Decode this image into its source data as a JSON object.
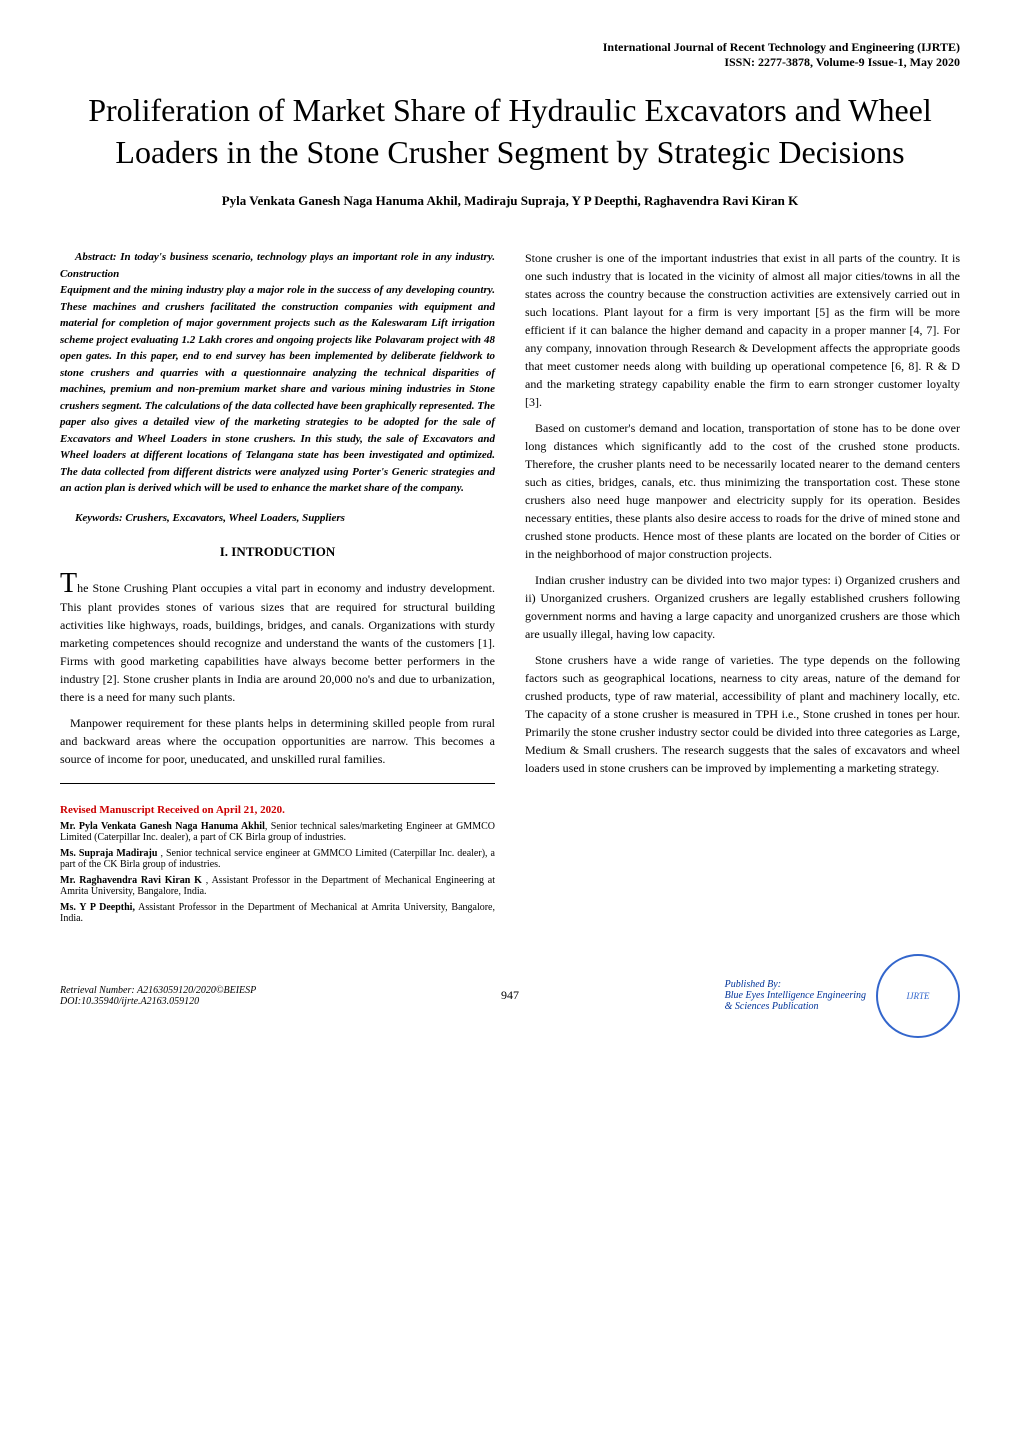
{
  "journal": {
    "name": "International Journal of Recent Technology and Engineering (IJRTE)",
    "issn": "ISSN: 2277-3878, Volume-9 Issue-1, May 2020"
  },
  "title": "Proliferation of Market Share of Hydraulic Excavators and Wheel Loaders in the Stone Crusher Segment by Strategic Decisions",
  "authors": "Pyla Venkata Ganesh Naga Hanuma Akhil, Madiraju Supraja, Y P Deepthi, Raghavendra Ravi Kiran K",
  "abstract": {
    "label": "Abstract: In today's business scenario, technology plays an important role in any industry. Construction",
    "body": "Equipment and the mining industry play a major role in the success of any developing country. These machines and crushers facilitated the construction companies with equipment and material for completion of major government projects such as the Kaleswaram Lift irrigation scheme project evaluating 1.2 Lakh crores and ongoing projects like Polavaram project with 48 open gates. In this paper, end to end survey has been implemented by deliberate fieldwork to stone crushers and quarries with a questionnaire analyzing the technical disparities of machines, premium and non-premium market share and various mining industries in Stone crushers segment. The calculations of the data collected have been graphically represented. The paper also gives a detailed view of the marketing strategies to be adopted for the sale of Excavators and Wheel Loaders in stone crushers. In this study, the sale of Excavators and Wheel loaders at different locations of Telangana state has been investigated and optimized. The data collected from different districts were analyzed using Porter's Generic strategies and an action plan is derived which will be used to enhance the market share of the company."
  },
  "keywords": "Keywords: Crushers, Excavators, Wheel Loaders, Suppliers",
  "section1": {
    "heading": "I.     INTRODUCTION",
    "dropcap": "T",
    "para1_start": "he Stone Crushing Plant occupies a vital part in economy and industry development. This plant provides stones of various sizes that are required for structural building activities like highways, roads, buildings, bridges, and canals. Organizations with sturdy marketing competences should recognize and understand the wants of the customers [1]. Firms with good marketing capabilities have always become better performers in the industry [2]. Stone crusher plants in India are around 20,000 no's and due to urbanization, there is a need for many such plants.",
    "para2": "Manpower requirement for these plants helps in determining skilled people from rural and backward areas where the occupation opportunities are narrow.  This becomes a source of income for poor, uneducated, and unskilled rural families."
  },
  "right_column": {
    "para1": "Stone crusher is one of the important industries that exist in all parts of the country. It is one such industry that is located in the vicinity of almost all major cities/towns in all the states across the country because the construction activities are extensively carried out in such locations. Plant layout for a firm is very important [5] as the firm will be more efficient if it can balance the higher demand and capacity in a proper manner [4, 7]. For any company, innovation through Research & Development affects the appropriate goods that meet customer needs along with building up operational competence [6, 8]. R & D and the marketing strategy capability enable the firm to earn stronger customer loyalty [3].",
    "para2": "Based on customer's demand and location, transportation of stone has to be done over long distances which significantly add to the cost of the crushed stone products. Therefore, the crusher plants need to be necessarily located nearer to the demand centers such as cities, bridges, canals, etc. thus minimizing the transportation cost. These stone crushers also need huge manpower and electricity supply for its operation. Besides necessary entities, these plants also desire access to roads for the drive of mined stone and crushed stone products. Hence most of these plants are located on the border of Cities or in the neighborhood of major construction projects.",
    "para3": "Indian crusher industry can be divided into two major types: i) Organized crushers and ii) Unorganized crushers. Organized crushers are legally established crushers following government norms and having a large capacity and unorganized crushers are those which are usually illegal, having low capacity.",
    "para4": "Stone crushers have a wide range of varieties. The type depends on the following factors such as geographical locations, nearness to city areas, nature of the demand for crushed products, type of raw material, accessibility of plant and machinery locally, etc. The capacity of a stone crusher is measured in TPH i.e., Stone crushed in tones per hour. Primarily the stone crusher industry sector could be divided into three categories as Large, Medium & Small crushers. The research suggests that the sales of excavators and wheel loaders used in stone crushers can be improved by implementing a marketing strategy."
  },
  "revised": {
    "header": "Revised Manuscript Received on April 21, 2020.",
    "bio1_name": "Mr. Pyla Venkata Ganesh Naga Hanuma Akhil",
    "bio1_text": ", Senior technical sales/marketing Engineer at GMMCO Limited (Caterpillar Inc. dealer), a part of CK Birla group of industries.",
    "bio2_name": "Ms. Supraja Madiraju",
    "bio2_text": " , Senior technical service engineer at GMMCO Limited (Caterpillar Inc. dealer), a part of the CK Birla group of industries.",
    "bio3_name": "Mr. Raghavendra Ravi Kiran K",
    "bio3_text": " , Assistant Professor in the Department of Mechanical Engineering at Amrita University, Bangalore, India.",
    "bio4_name": "Ms. Y P Deepthi,",
    "bio4_text": " Assistant Professor in the Department of Mechanical at Amrita University, Bangalore,  India."
  },
  "footer": {
    "retrieval": "Retrieval Number: A2163059120/2020©BEIESP",
    "doi": "DOI:10.35940/ijrte.A2163.059120",
    "page_number": "947",
    "published_by": "Published By:",
    "publisher": "Blue Eyes Intelligence Engineering",
    "publisher2": "& Sciences Publication",
    "logo_text": "IJRTE"
  },
  "colors": {
    "text": "#000000",
    "red_header": "#cc0000",
    "blue_publisher": "#003399",
    "logo_border": "#3366cc",
    "background": "#ffffff"
  },
  "typography": {
    "title_fontsize": 32,
    "body_fontsize": 12,
    "abstract_fontsize": 11,
    "bio_fontsize": 10,
    "footer_fontsize": 10
  }
}
